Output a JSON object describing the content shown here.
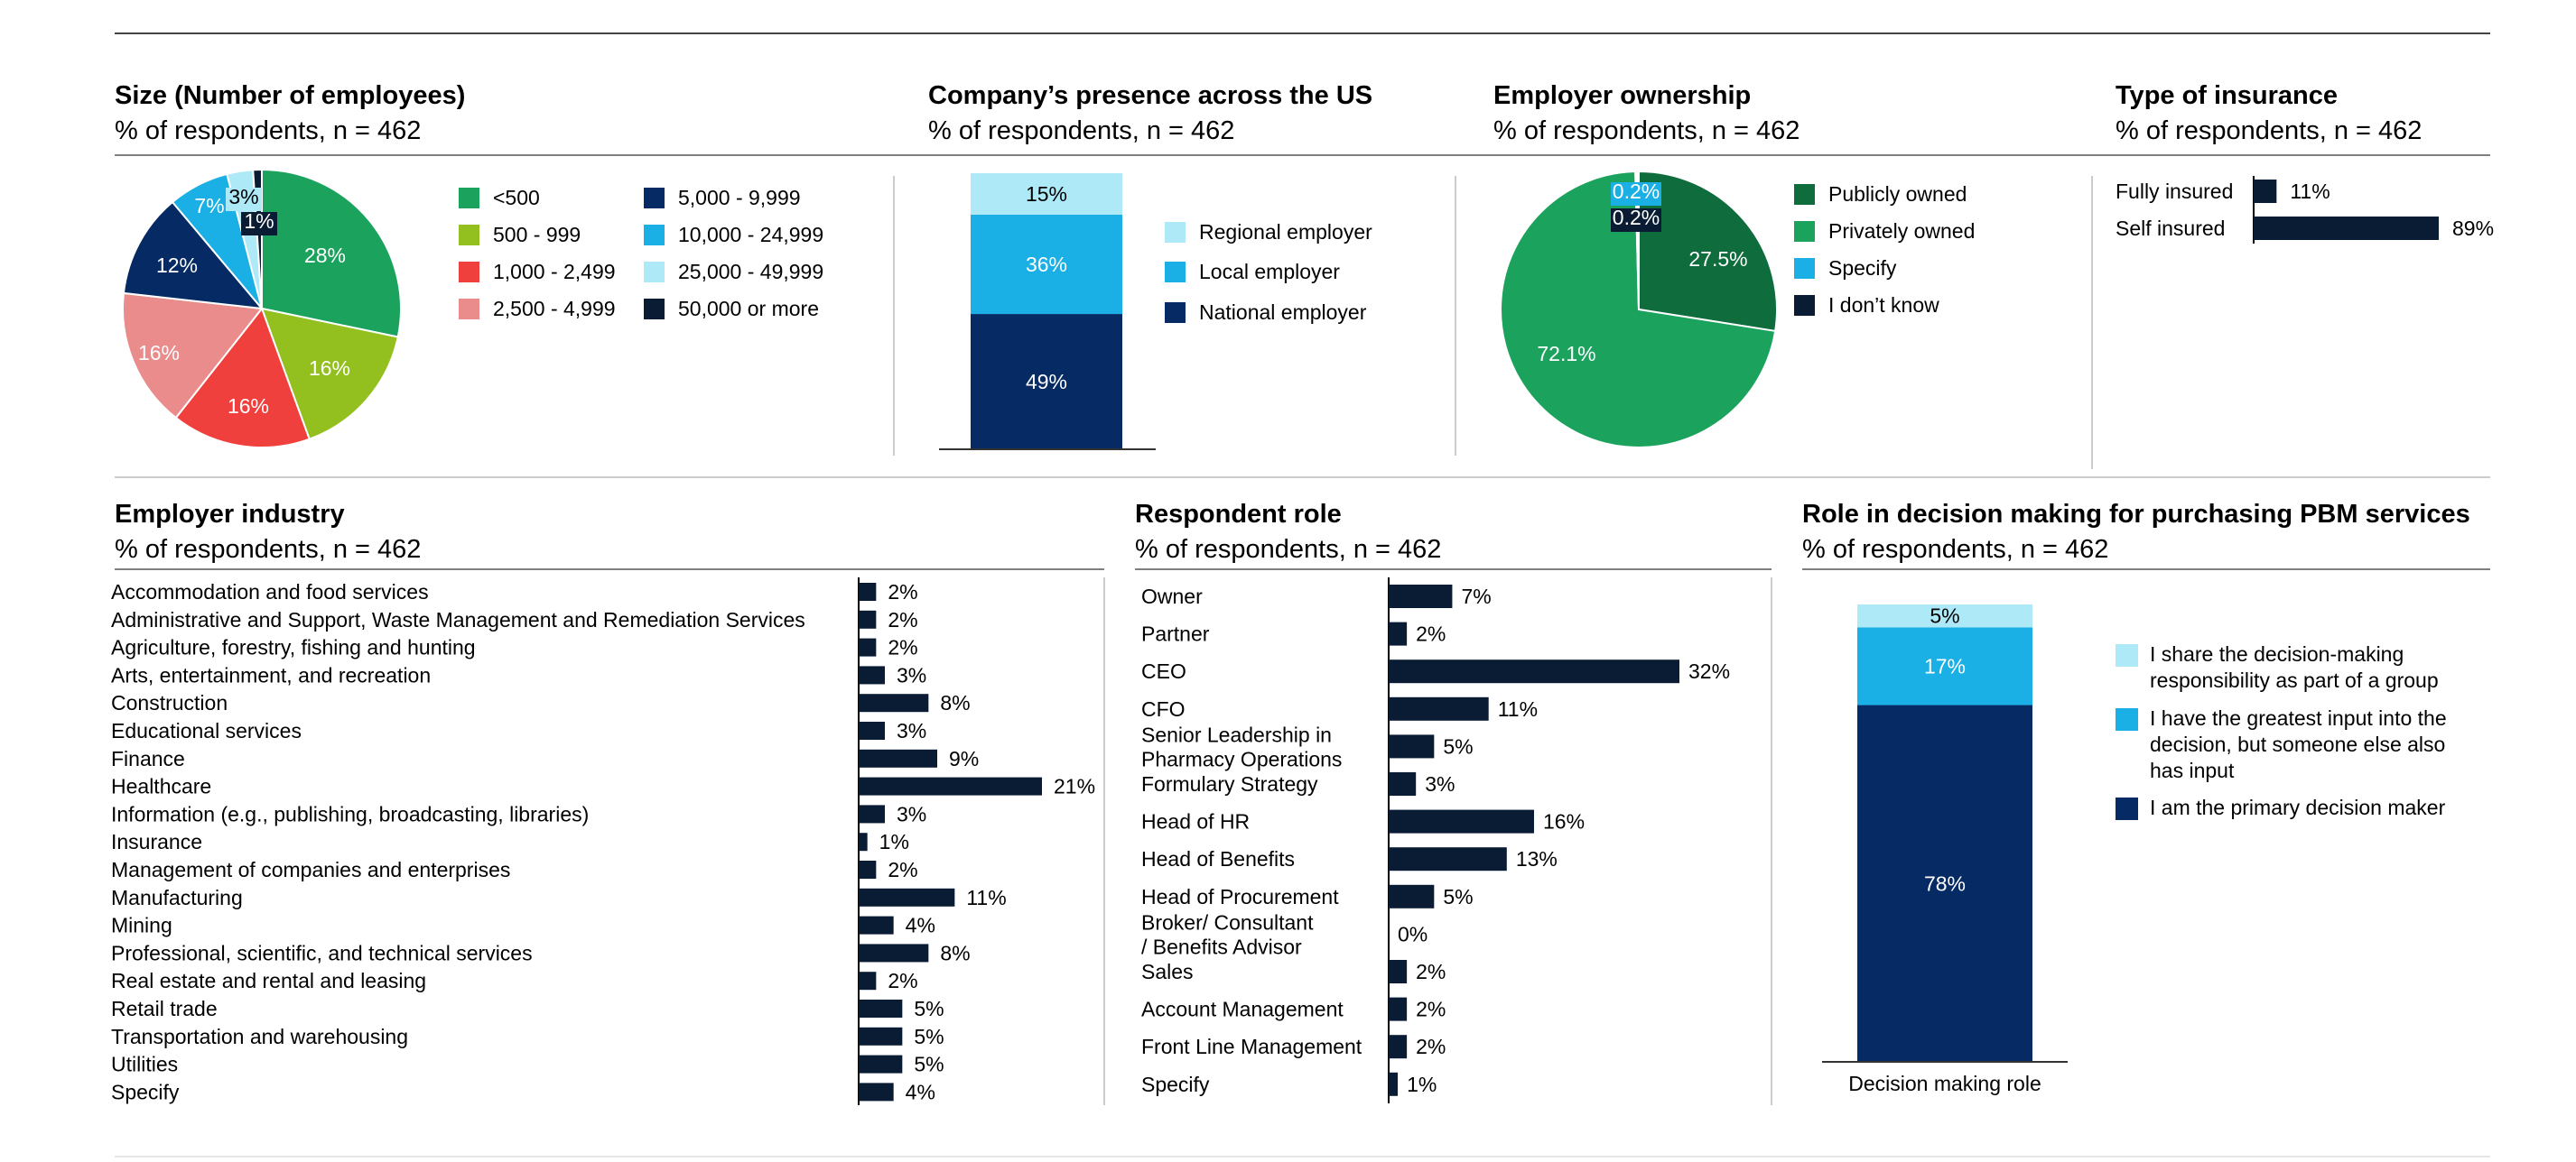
{
  "palette": {
    "navy": "#062A64",
    "blue": "#1AAFE5",
    "light_blue": "#AEE9F8",
    "dark": "#0A1C33",
    "green": "#1BA35E",
    "lime": "#93C01F",
    "red": "#F0403E",
    "pink": "#EA8B8C",
    "dark_green": "#0E6C3D",
    "rule": "#7F7F7F"
  },
  "chart_data": [
    {
      "id": "size",
      "type": "pie",
      "title": "Size (Number of employees)",
      "subtitle": "% of respondents, n = 462",
      "slices": [
        {
          "label": "<500",
          "value": 28,
          "text": "28%",
          "color": "#1BA35E"
        },
        {
          "label": "500 - 999",
          "value": 16,
          "text": "16%",
          "color": "#93C01F"
        },
        {
          "label": "1,000 - 2,499",
          "value": 16,
          "text": "16%",
          "color": "#F0403E"
        },
        {
          "label": "2,500 - 4,999",
          "value": 16,
          "text": "16%",
          "color": "#EA8B8C"
        },
        {
          "label": "5,000 - 9,999",
          "value": 12,
          "text": "12%",
          "color": "#062A64"
        },
        {
          "label": "10,000 - 24,999",
          "value": 7,
          "text": "7%",
          "color": "#1AAFE5"
        },
        {
          "label": "25,000 - 49,999",
          "value": 3,
          "text": "3%",
          "color": "#AEE9F8"
        },
        {
          "label": "50,000 or more",
          "value": 1,
          "text": "1%",
          "color": "#0A1C33"
        }
      ],
      "legend_order": [
        "<500",
        "500 - 999",
        "1,000 - 2,499",
        "2,500 - 4,999",
        "5,000 - 9,999",
        "10,000 - 24,999",
        "25,000 - 49,999",
        "50,000 or more"
      ]
    },
    {
      "id": "presence",
      "type": "bar",
      "stacked": true,
      "title": "Company’s presence across the US",
      "subtitle": "% of respondents, n = 462",
      "segments": [
        {
          "label": "National employer",
          "value": 49,
          "text": "49%",
          "color": "#062A64"
        },
        {
          "label": "Local employer",
          "value": 36,
          "text": "36%",
          "color": "#1AAFE5"
        },
        {
          "label": "Regional employer",
          "value": 15,
          "text": "15%",
          "color": "#AEE9F8"
        }
      ],
      "legend_order": [
        "Regional employer",
        "Local employer",
        "National employer"
      ]
    },
    {
      "id": "ownership",
      "type": "pie",
      "title": "Employer ownership",
      "subtitle": "% of respondents, n = 462",
      "slices": [
        {
          "label": "Publicly owned",
          "value": 27.5,
          "text": "27.5%",
          "color": "#0E6C3D"
        },
        {
          "label": "Privately owned",
          "value": 72.1,
          "text": "72.1%",
          "color": "#1BA35E"
        },
        {
          "label": "Specify",
          "value": 0.2,
          "text": "0.2%",
          "color": "#1AAFE5"
        },
        {
          "label": "I don’t know",
          "value": 0.2,
          "text": "0.2%",
          "color": "#0A1C33"
        }
      ],
      "legend_order": [
        "Publicly owned",
        "Privately owned",
        "Specify",
        "I don’t know"
      ]
    },
    {
      "id": "insurance",
      "type": "bar",
      "orientation": "horizontal",
      "title": "Type of insurance",
      "subtitle": "% of respondents, n = 462",
      "categories": [
        "Fully insured",
        "Self insured"
      ],
      "values": [
        11,
        89
      ],
      "labels": [
        "11%",
        "89%"
      ]
    },
    {
      "id": "industry",
      "type": "bar",
      "orientation": "horizontal",
      "title": "Employer industry",
      "subtitle": "% of respondents, n = 462",
      "categories": [
        "Accommodation and food services",
        "Administrative and Support, Waste Management and Remediation Services",
        "Agriculture, forestry, fishing and hunting",
        "Arts, entertainment, and recreation",
        "Construction",
        "Educational services",
        "Finance",
        "Healthcare",
        "Information (e.g., publishing, broadcasting, libraries)",
        "Insurance",
        "Management of companies and enterprises",
        "Manufacturing",
        "Mining",
        "Professional, scientific, and technical services",
        "Real estate and rental and leasing",
        "Retail trade",
        "Transportation and warehousing",
        "Utilities",
        "Specify"
      ],
      "values": [
        2,
        2,
        2,
        3,
        8,
        3,
        9,
        21,
        3,
        1,
        2,
        11,
        4,
        8,
        2,
        5,
        5,
        5,
        4
      ],
      "labels": [
        "2%",
        "2%",
        "2%",
        "3%",
        "8%",
        "3%",
        "9%",
        "21%",
        "3%",
        "1%",
        "2%",
        "11%",
        "4%",
        "8%",
        "2%",
        "5%",
        "5%",
        "5%",
        "4%"
      ]
    },
    {
      "id": "role",
      "type": "bar",
      "orientation": "horizontal",
      "title": "Respondent role",
      "subtitle": "% of respondents, n = 462",
      "categories": [
        [
          "Owner"
        ],
        [
          "Partner"
        ],
        [
          "CEO"
        ],
        [
          "CFO"
        ],
        [
          "Senior Leadership in",
          "Pharmacy Operations"
        ],
        [
          "Formulary Strategy"
        ],
        [
          "Head of HR"
        ],
        [
          "Head of Benefits"
        ],
        [
          "Head of Procurement"
        ],
        [
          "Broker/ Consultant",
          "/ Benefits Advisor"
        ],
        [
          "Sales"
        ],
        [
          "Account Management"
        ],
        [
          "Front Line Management"
        ],
        [
          "Specify"
        ]
      ],
      "values": [
        7,
        2,
        32,
        11,
        5,
        3,
        16,
        13,
        5,
        0,
        2,
        2,
        2,
        1
      ],
      "labels": [
        "7%",
        "2%",
        "32%",
        "11%",
        "5%",
        "3%",
        "16%",
        "13%",
        "5%",
        "0%",
        "2%",
        "2%",
        "2%",
        "1%"
      ]
    },
    {
      "id": "decision",
      "type": "bar",
      "stacked": true,
      "title": "Role in decision making for purchasing PBM services",
      "subtitle": "% of respondents, n = 462",
      "xlabel": "Decision making role",
      "segments": [
        {
          "label": "I am the primary decision maker",
          "value": 78,
          "text": "78%",
          "color": "#062A64"
        },
        {
          "label": "I have the greatest input into the decision, but someone else also has input",
          "value": 17,
          "text": "17%",
          "color": "#1AAFE5"
        },
        {
          "label": "I share the decision-making responsibility as part of a group",
          "value": 5,
          "text": "5%",
          "color": "#AEE9F8"
        }
      ],
      "legend_lines": [
        [
          "I share the decision-making",
          "responsibility as part of a group"
        ],
        [
          "I have the greatest input into the",
          "decision, but someone else also",
          "has input"
        ],
        [
          "I am the primary decision maker"
        ]
      ]
    }
  ]
}
